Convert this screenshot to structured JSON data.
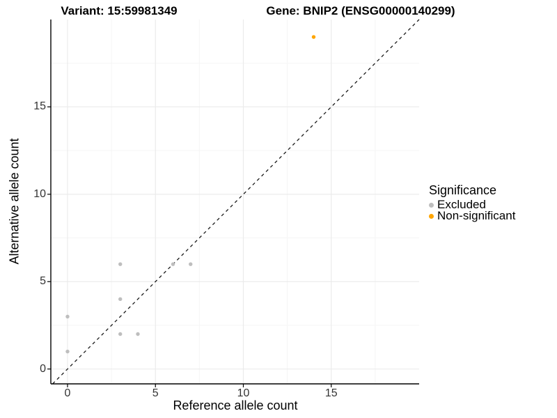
{
  "chart_data": {
    "type": "scatter",
    "titles": {
      "variant": "Variant: 15:59981349",
      "gene": "Gene: BNIP2 (ENSG00000140299)"
    },
    "xlabel": "Reference allele count",
    "ylabel": "Alternative allele count",
    "xlim": [
      -0.95,
      20
    ],
    "ylim": [
      -0.85,
      20
    ],
    "x_ticks": [
      0,
      5,
      10,
      15
    ],
    "y_ticks": [
      0,
      5,
      10,
      15
    ],
    "x_minor_ticks": [
      2.5,
      7.5,
      12.5,
      17.5
    ],
    "y_minor_ticks": [
      2.5,
      7.5,
      12.5,
      17.5
    ],
    "grid": "major+minor on white background",
    "reference_line": {
      "type": "identity",
      "slope": 1,
      "intercept": 0,
      "style": "dashed",
      "color": "#1a1a1a"
    },
    "series": [
      {
        "name": "Excluded",
        "color": "#bebebe",
        "points": [
          [
            0,
            1
          ],
          [
            0,
            3
          ],
          [
            3,
            2
          ],
          [
            3,
            4
          ],
          [
            3,
            6
          ],
          [
            4,
            2
          ],
          [
            6,
            6
          ],
          [
            7,
            6
          ]
        ]
      },
      {
        "name": "Non-significant",
        "color": "#ffa500",
        "points": [
          [
            14,
            19
          ]
        ]
      }
    ],
    "legend": {
      "title": "Significance",
      "position": "right",
      "entries": [
        {
          "label": "Excluded",
          "color": "#bebebe"
        },
        {
          "label": "Non-significant",
          "color": "#ffa500"
        }
      ]
    }
  }
}
